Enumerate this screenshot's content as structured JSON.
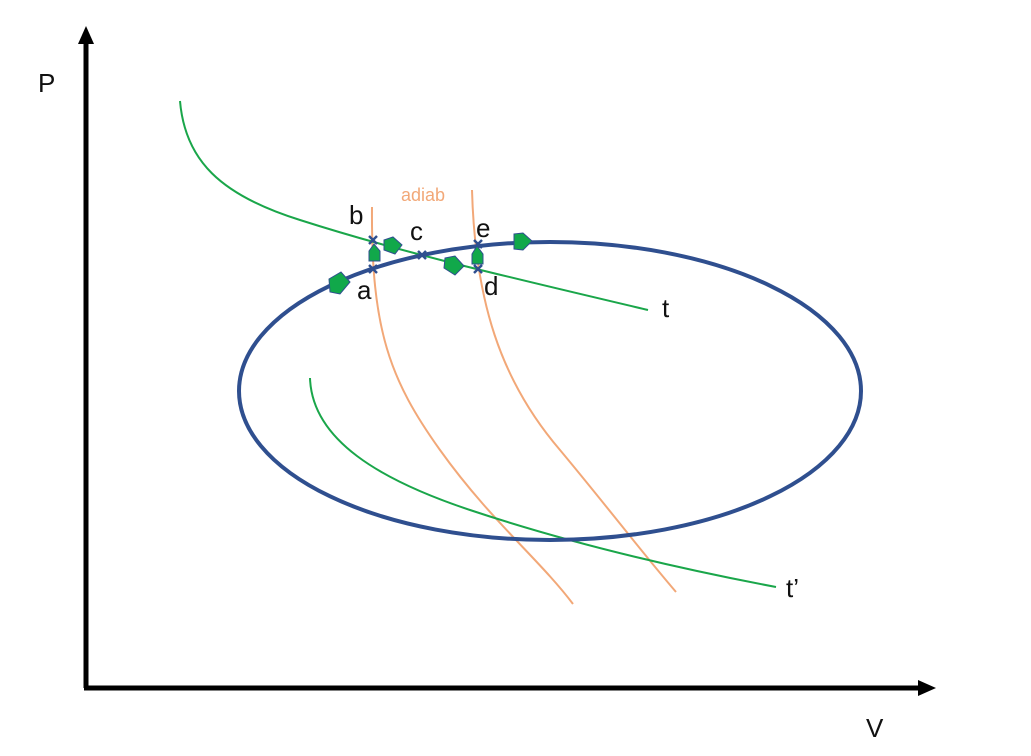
{
  "axes": {
    "y_label": "P",
    "x_label": "V"
  },
  "curves": {
    "isotherm_upper": "t",
    "isotherm_lower": "t’",
    "adiabat": "adiab"
  },
  "points": {
    "a": "a",
    "b": "b",
    "c": "c",
    "d": "d",
    "e": "e"
  },
  "colors": {
    "axis": "#000000",
    "cycle": "#2f4f8f",
    "isotherm": "#1aa64a",
    "adiabat": "#f2a878",
    "arrow": "#11a84a",
    "marker": "#2f4f8f"
  }
}
